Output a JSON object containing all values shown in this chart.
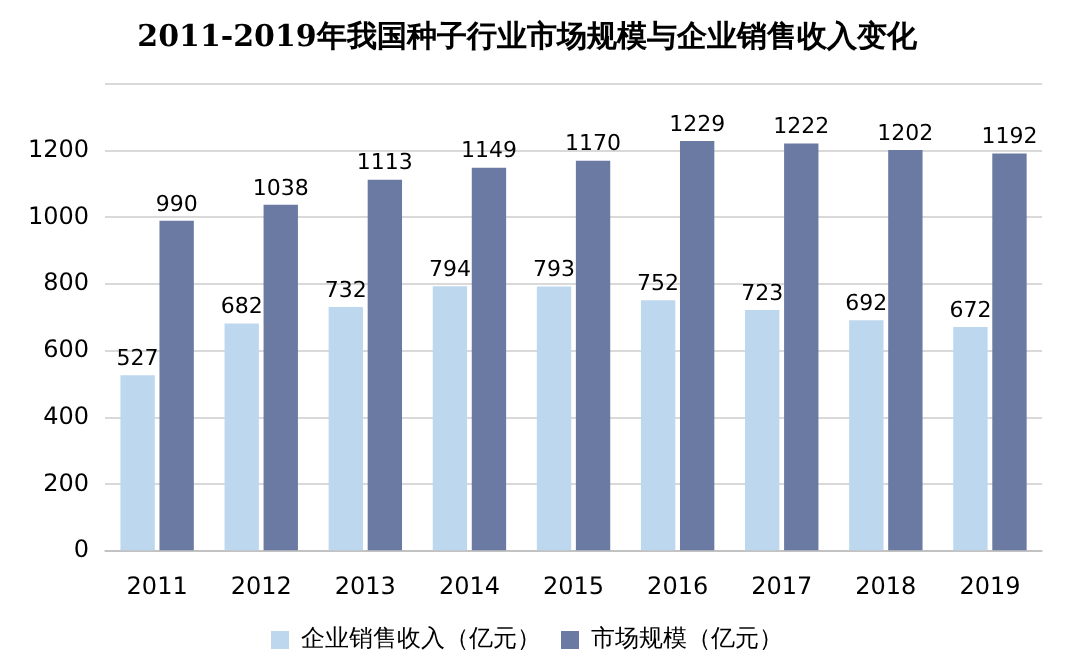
{
  "chart_data": {
    "type": "bar",
    "title": "2011-2019年我国种子行业市场规模与企业销售收入变化",
    "categories": [
      "2011",
      "2012",
      "2013",
      "2014",
      "2015",
      "2016",
      "2017",
      "2018",
      "2019"
    ],
    "series": [
      {
        "name": "企业销售收入（亿元）",
        "color": "#bdd7ee",
        "values": [
          527,
          682,
          732,
          794,
          793,
          752,
          723,
          692,
          672
        ]
      },
      {
        "name": "市场规模（亿元）",
        "color": "#6a7aa2",
        "values": [
          990,
          1038,
          1113,
          1149,
          1170,
          1229,
          1222,
          1202,
          1192
        ]
      }
    ],
    "ylim": [
      0,
      1400
    ],
    "yticks": [
      0,
      200,
      400,
      600,
      800,
      1000,
      1200,
      {
        "value": 1400,
        "label": null
      }
    ],
    "grid": "y",
    "legend": "bottom",
    "data_labels": true
  }
}
